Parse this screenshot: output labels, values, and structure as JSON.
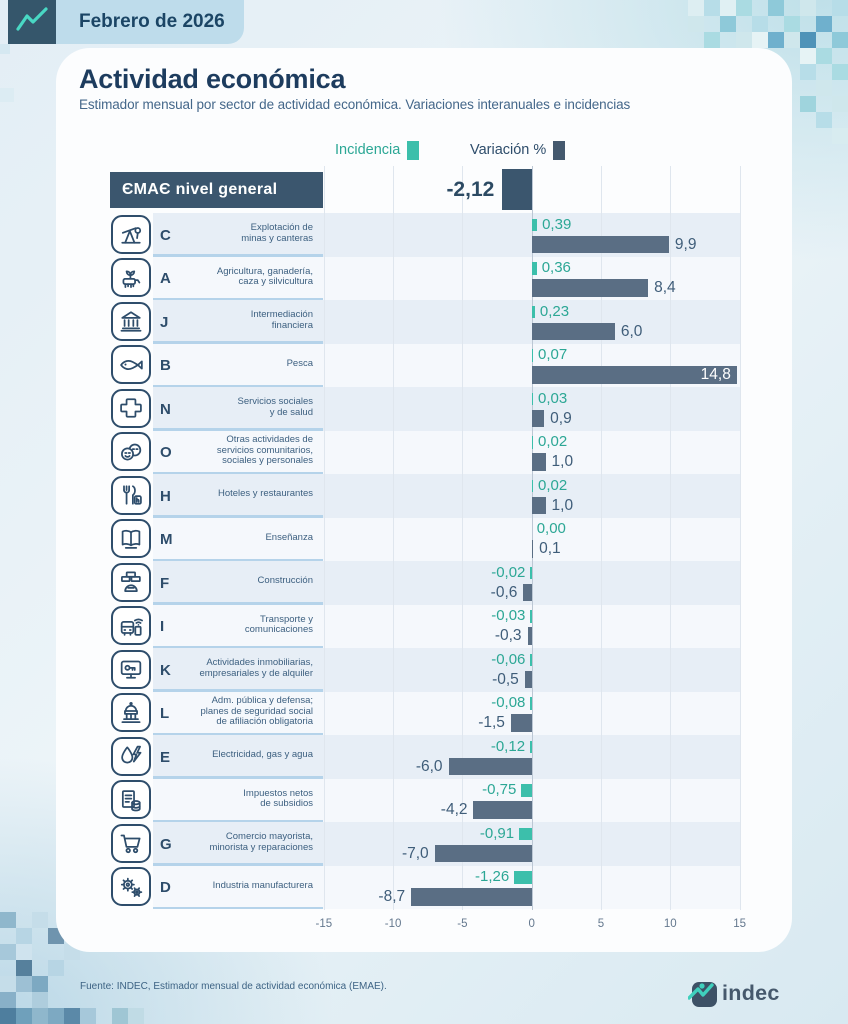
{
  "header": {
    "date_label": "Febrero de 2026"
  },
  "title": "Actividad económica",
  "subtitle": "Estimador mensual por sector de actividad económica. Variaciones interanuales e incidencias",
  "legend": {
    "incidencia": "Incidencia",
    "variacion": "Variación %"
  },
  "colors": {
    "teal": "#3cbfab",
    "teal_text": "#2ca795",
    "slate_bar": "#5a6e84",
    "slate_dark": "#3b566e",
    "navy": "#2e4d6b",
    "band_odd": "#e7eef6",
    "band_even": "#f5f8fc"
  },
  "chart_data": {
    "type": "bar",
    "title": "Actividad económica",
    "subtitle": "Estimador mensual por sector de actividad económica. Variaciones interanuales e incidencias",
    "xlim": [
      -15,
      15
    ],
    "x_ticks": [
      -15,
      -10,
      -5,
      0,
      5,
      10,
      15
    ],
    "grid": true,
    "legend_position": "top",
    "series_names": [
      "Incidencia",
      "Variación %"
    ],
    "general": {
      "label": "ЄMAЄ nivel general",
      "variacion": -2.12,
      "variacion_label": "-2,12"
    },
    "rows": [
      {
        "code": "C",
        "icon": "mining-icon",
        "name": "Explotación de\nminas y canteras",
        "incidencia": 0.39,
        "incidencia_label": "0,39",
        "variacion": 9.9,
        "variacion_label": "9,9"
      },
      {
        "code": "A",
        "icon": "agriculture-icon",
        "name": "Agricultura, ganadería,\ncaza y silvicultura",
        "incidencia": 0.36,
        "incidencia_label": "0,36",
        "variacion": 8.4,
        "variacion_label": "8,4"
      },
      {
        "code": "J",
        "icon": "bank-icon",
        "name": "Intermediación\nfinanciera",
        "incidencia": 0.23,
        "incidencia_label": "0,23",
        "variacion": 6.0,
        "variacion_label": "6,0"
      },
      {
        "code": "B",
        "icon": "fish-icon",
        "name": "Pesca",
        "incidencia": 0.07,
        "incidencia_label": "0,07",
        "variacion": 14.8,
        "variacion_label": "14,8",
        "variacion_inside": true
      },
      {
        "code": "N",
        "icon": "health-cross-icon",
        "name": "Servicios sociales\ny de salud",
        "incidencia": 0.03,
        "incidencia_label": "0,03",
        "variacion": 0.9,
        "variacion_label": "0,9"
      },
      {
        "code": "O",
        "icon": "masks-icon",
        "name": "Otras actividades de\nservicios comunitarios,\nsociales y personales",
        "incidencia": 0.02,
        "incidencia_label": "0,02",
        "variacion": 1.0,
        "variacion_label": "1,0"
      },
      {
        "code": "H",
        "icon": "restaurant-icon",
        "name": "Hoteles y restaurantes",
        "incidencia": 0.02,
        "incidencia_label": "0,02",
        "variacion": 1.0,
        "variacion_label": "1,0"
      },
      {
        "code": "M",
        "icon": "book-icon",
        "name": "Enseñanza",
        "incidencia": 0.0,
        "incidencia_label": "0,00",
        "variacion": 0.1,
        "variacion_label": "0,1"
      },
      {
        "code": "F",
        "icon": "construction-icon",
        "name": "Construcción",
        "incidencia": -0.02,
        "incidencia_label": "-0,02",
        "variacion": -0.6,
        "variacion_label": "-0,6"
      },
      {
        "code": "I",
        "icon": "transport-icon",
        "name": "Transporte y\ncomunicaciones",
        "incidencia": -0.03,
        "incidencia_label": "-0,03",
        "variacion": -0.3,
        "variacion_label": "-0,3"
      },
      {
        "code": "K",
        "icon": "real-estate-icon",
        "name": "Actividades inmobiliarias,\nempresariales y de alquiler",
        "incidencia": -0.06,
        "incidencia_label": "-0,06",
        "variacion": -0.5,
        "variacion_label": "-0,5"
      },
      {
        "code": "L",
        "icon": "government-icon",
        "name": "Adm. pública y defensa;\nplanes de seguridad social\nde afiliación obligatoria",
        "incidencia": -0.08,
        "incidencia_label": "-0,08",
        "variacion": -1.5,
        "variacion_label": "-1,5"
      },
      {
        "code": "E",
        "icon": "energy-icon",
        "name": "Electricidad, gas y agua",
        "incidencia": -0.12,
        "incidencia_label": "-0,12",
        "variacion": -6.0,
        "variacion_label": "-6,0"
      },
      {
        "code": "",
        "icon": "taxes-icon",
        "name": "Impuestos netos\nde subsidios",
        "incidencia": -0.75,
        "incidencia_label": "-0,75",
        "variacion": -4.2,
        "variacion_label": "-4,2"
      },
      {
        "code": "G",
        "icon": "cart-icon",
        "name": "Comercio mayorista,\nminorista y reparaciones",
        "incidencia": -0.91,
        "incidencia_label": "-0,91",
        "variacion": -7.0,
        "variacion_label": "-7,0"
      },
      {
        "code": "D",
        "icon": "gears-icon",
        "name": "Industria manufacturera",
        "incidencia": -1.26,
        "incidencia_label": "-1,26",
        "variacion": -8.7,
        "variacion_label": "-8,7"
      }
    ]
  },
  "footer": {
    "source": "Fuente: INDEC, Estimador mensual de actividad económica (EMAE).",
    "logo_text": "indec"
  }
}
